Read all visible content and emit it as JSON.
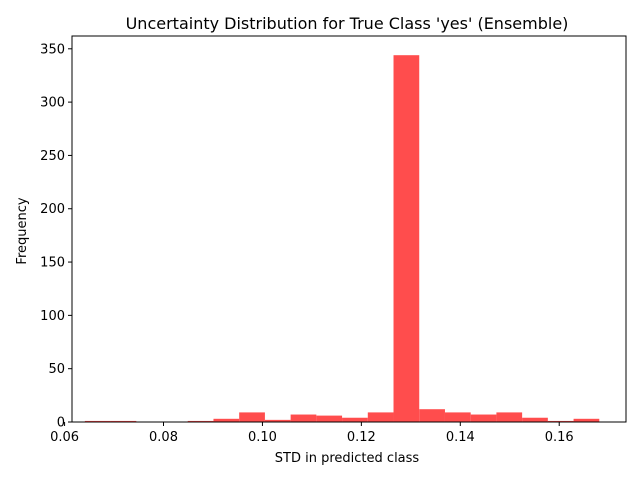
{
  "chart_data": {
    "type": "bar",
    "title": "Uncertainty Distribution for True Class 'yes' (Ensemble)",
    "xlabel": "STD in predicted class",
    "ylabel": "Frequency",
    "bar_color": "#ff4d4d",
    "xlim": [
      0.0615,
      0.1735
    ],
    "ylim": [
      0,
      362
    ],
    "xticks": [
      0.06,
      0.08,
      0.1,
      0.12,
      0.14,
      0.16
    ],
    "xtick_labels": [
      "0.06",
      "0.08",
      "0.10",
      "0.12",
      "0.14",
      "0.16"
    ],
    "yticks": [
      0,
      50,
      100,
      150,
      200,
      250,
      300,
      350
    ],
    "ytick_labels": [
      "0",
      "50",
      "100",
      "150",
      "200",
      "250",
      "300",
      "350"
    ],
    "grid": false,
    "bins": [
      {
        "x0": 0.0641,
        "x1": 0.0693,
        "count": 1
      },
      {
        "x0": 0.0693,
        "x1": 0.0745,
        "count": 1
      },
      {
        "x0": 0.0745,
        "x1": 0.0797,
        "count": 0
      },
      {
        "x0": 0.0797,
        "x1": 0.0849,
        "count": 0
      },
      {
        "x0": 0.0849,
        "x1": 0.0901,
        "count": 1
      },
      {
        "x0": 0.0901,
        "x1": 0.0953,
        "count": 3
      },
      {
        "x0": 0.0953,
        "x1": 0.1005,
        "count": 9
      },
      {
        "x0": 0.1005,
        "x1": 0.1057,
        "count": 2
      },
      {
        "x0": 0.1057,
        "x1": 0.1109,
        "count": 7
      },
      {
        "x0": 0.1109,
        "x1": 0.1161,
        "count": 6
      },
      {
        "x0": 0.1161,
        "x1": 0.1213,
        "count": 4
      },
      {
        "x0": 0.1213,
        "x1": 0.1265,
        "count": 9
      },
      {
        "x0": 0.1265,
        "x1": 0.1317,
        "count": 344
      },
      {
        "x0": 0.1317,
        "x1": 0.1369,
        "count": 12
      },
      {
        "x0": 0.1369,
        "x1": 0.1421,
        "count": 9
      },
      {
        "x0": 0.1421,
        "x1": 0.1473,
        "count": 7
      },
      {
        "x0": 0.1473,
        "x1": 0.1525,
        "count": 9
      },
      {
        "x0": 0.1525,
        "x1": 0.1577,
        "count": 4
      },
      {
        "x0": 0.1577,
        "x1": 0.1629,
        "count": 1
      },
      {
        "x0": 0.1629,
        "x1": 0.1681,
        "count": 3
      }
    ]
  }
}
